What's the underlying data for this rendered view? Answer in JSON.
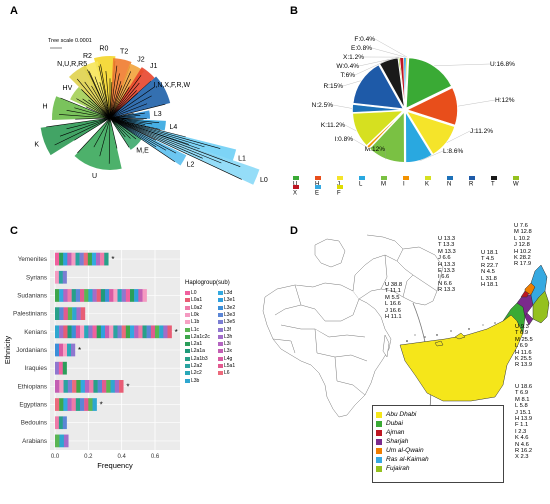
{
  "panels": {
    "a": {
      "label": "A",
      "tree_scale": "Tree scale 0.0001",
      "clades": [
        {
          "name": "R0",
          "color": "#f4d629"
        },
        {
          "name": "T2",
          "color": "#ef7b2e"
        },
        {
          "name": "J2",
          "color": "#f2a33b"
        },
        {
          "name": "J1",
          "color": "#e8452c"
        },
        {
          "name": "R2",
          "color": "#f6e65a"
        },
        {
          "name": "N,U,R,R5",
          "color": "#e0d24c"
        },
        {
          "name": "HV",
          "color": "#a4cf55"
        },
        {
          "name": "H",
          "color": "#6bbd4a"
        },
        {
          "name": "I,N,X,F,R,W",
          "color": "#1e60a8"
        },
        {
          "name": "L3",
          "color": "#2d8fd6"
        },
        {
          "name": "L4",
          "color": "#33a6e0"
        },
        {
          "name": "K",
          "color": "#2e9a54"
        },
        {
          "name": "M,E",
          "color": "#3ca96b"
        },
        {
          "name": "L2",
          "color": "#5cc0f0"
        },
        {
          "name": "L1",
          "color": "#6fcff5"
        },
        {
          "name": "L0",
          "color": "#8ad9f7"
        },
        {
          "name": "U",
          "color": "#3aa95b"
        }
      ]
    },
    "b": {
      "label": "B",
      "chart_data": {
        "type": "pie",
        "slices": [
          {
            "name": "U",
            "label": "U:16.8%",
            "value": 16.8,
            "color": "#3aaa35"
          },
          {
            "name": "H",
            "label": "H:12%",
            "value": 12.0,
            "color": "#e84e1b"
          },
          {
            "name": "J",
            "label": "J:11.2%",
            "value": 11.2,
            "color": "#f5e42a"
          },
          {
            "name": "L",
            "label": "L:8.6%",
            "value": 8.6,
            "color": "#29a8e0"
          },
          {
            "name": "M",
            "label": "M:12%",
            "value": 12.0,
            "color": "#7ac143"
          },
          {
            "name": "I",
            "label": "I:0.8%",
            "value": 0.8,
            "color": "#f39200"
          },
          {
            "name": "K",
            "label": "K:11.2%",
            "value": 11.2,
            "color": "#d6e020"
          },
          {
            "name": "N",
            "label": "N:2.5%",
            "value": 2.5,
            "color": "#1d71b8"
          },
          {
            "name": "R",
            "label": "R:15%",
            "value": 15.0,
            "color": "#1e5aa8"
          },
          {
            "name": "T",
            "label": "T:6%",
            "value": 6.0,
            "color": "#1a1a1a"
          },
          {
            "name": "W",
            "label": "W:0.4%",
            "value": 0.4,
            "color": "#95c11f"
          },
          {
            "name": "X",
            "label": "X:1.2%",
            "value": 1.2,
            "color": "#be1622"
          },
          {
            "name": "E",
            "label": "E:0.8%",
            "value": 0.8,
            "color": "#36a9e1"
          },
          {
            "name": "F",
            "label": "F:0.4%",
            "value": 0.4,
            "color": "#dedc00"
          }
        ],
        "legend": [
          "U",
          "H",
          "J",
          "L",
          "M",
          "I",
          "K",
          "N",
          "R",
          "T",
          "W",
          "X",
          "E",
          "F"
        ],
        "legend_placement": "bottom"
      }
    },
    "c": {
      "label": "C",
      "chart_data": {
        "type": "bar",
        "orientation": "horizontal",
        "stacked": true,
        "categories": [
          "Yemenites",
          "Syrians",
          "Sudanians",
          "Palestinians",
          "Kenians",
          "Jordanians",
          "Iraquies",
          "Ethiopians",
          "Egyptians",
          "Bedouins",
          "Arabians"
        ],
        "totals": [
          0.32,
          0.07,
          0.55,
          0.18,
          0.7,
          0.12,
          0.07,
          0.41,
          0.25,
          0.07,
          0.08
        ],
        "significant": [
          true,
          false,
          false,
          false,
          true,
          true,
          false,
          true,
          true,
          false,
          false
        ],
        "star": "*",
        "xlabel": "Frequency",
        "ylabel": "Ethnicity",
        "xticks": [
          "0.0",
          "0.2",
          "0.4",
          "0.6"
        ],
        "xlim": [
          0,
          0.72
        ],
        "grid": true,
        "legend_title": "Haplogroup(sub)",
        "legend_placement": "right",
        "haplogroups": [
          {
            "name": "L0",
            "color": "#f0609e"
          },
          {
            "name": "L0a1",
            "color": "#e85d75"
          },
          {
            "name": "L0a2",
            "color": "#ee7aa8"
          },
          {
            "name": "L0k",
            "color": "#f49ac1"
          },
          {
            "name": "L1b",
            "color": "#f7a1c4"
          },
          {
            "name": "L1c",
            "color": "#5ab552"
          },
          {
            "name": "L2a1c2c",
            "color": "#3ea64b"
          },
          {
            "name": "L2a1",
            "color": "#2b9e5a"
          },
          {
            "name": "L2a1a",
            "color": "#1f9a7a"
          },
          {
            "name": "L2a1b3",
            "color": "#27a089"
          },
          {
            "name": "L2a2",
            "color": "#2aa3a0"
          },
          {
            "name": "L2c2",
            "color": "#29a8b8"
          },
          {
            "name": "L3b",
            "color": "#2ea7d0"
          },
          {
            "name": "L3d",
            "color": "#33a9e0"
          },
          {
            "name": "L3e1",
            "color": "#2fa0df"
          },
          {
            "name": "L3e2",
            "color": "#3b8fd9"
          },
          {
            "name": "L3e3",
            "color": "#5b86d6"
          },
          {
            "name": "L3e5",
            "color": "#7b7ed3"
          },
          {
            "name": "L3f",
            "color": "#8f77cf"
          },
          {
            "name": "L3h",
            "color": "#a26dc9"
          },
          {
            "name": "L3i",
            "color": "#b465c1"
          },
          {
            "name": "L3x",
            "color": "#c35fb3"
          },
          {
            "name": "L4g",
            "color": "#d95aa3"
          },
          {
            "name": "L5a1",
            "color": "#e25a8f"
          },
          {
            "name": "L6",
            "color": "#ec6a7c"
          }
        ]
      }
    },
    "d": {
      "label": "D",
      "emirates": [
        {
          "name": "Abu Dhabi",
          "color": "#f5e61a"
        },
        {
          "name": "Dubai",
          "color": "#3aaa35"
        },
        {
          "name": "Ajman",
          "color": "#be1622"
        },
        {
          "name": "Sharjah",
          "color": "#7b2a8c"
        },
        {
          "name": "Um al-Qwain",
          "color": "#ef7d00"
        },
        {
          "name": "Ras al-Kaimah",
          "color": "#36a9e1"
        },
        {
          "name": "Fujairah",
          "color": "#95c11f"
        }
      ],
      "frequency_blocks": [
        {
          "id": "block-1",
          "lines": [
            "U 38.8",
            "T 11.1",
            "M 5.5",
            "L 16.6",
            "J 16.6",
            "H 11.1"
          ]
        },
        {
          "id": "block-2",
          "lines": [
            "U 13.3",
            "T 13.3",
            "M 13.3",
            "J 6.6",
            "H 13.3",
            "E 13.3",
            "I 6.6",
            "N 6.6",
            "R 13.3"
          ]
        },
        {
          "id": "block-3",
          "lines": [
            "U 18.1",
            "T 4.5",
            "R 22.7",
            "N 4.5",
            "L 31.8",
            "H 18.1"
          ]
        },
        {
          "id": "block-4",
          "lines": [
            "U 7.6",
            "M 12.8",
            "L 10.2",
            "J 12.8",
            "H 10.2",
            "K 28.2",
            "R 17.9"
          ]
        },
        {
          "id": "block-5",
          "lines": [
            "U 9.3",
            "T 6.9",
            "M 25.5",
            "L 6.9",
            "H 11.6",
            "K 25.5",
            "R 13.9"
          ]
        },
        {
          "id": "block-6",
          "lines": [
            "U 18.6",
            "T 6.9",
            "M 8.1",
            "L 5.8",
            "J 15.1",
            "H 13.9",
            "F 1.1",
            "I 2.3",
            "K 4.6",
            "N 4.6",
            "R 16.2",
            "X 2.3"
          ]
        }
      ]
    }
  }
}
